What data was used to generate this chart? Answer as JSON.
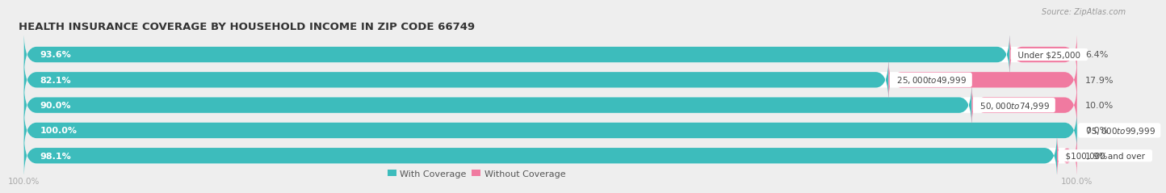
{
  "title": "HEALTH INSURANCE COVERAGE BY HOUSEHOLD INCOME IN ZIP CODE 66749",
  "source": "Source: ZipAtlas.com",
  "categories": [
    "Under $25,000",
    "$25,000 to $49,999",
    "$50,000 to $74,999",
    "$75,000 to $99,999",
    "$100,000 and over"
  ],
  "with_coverage": [
    93.6,
    82.1,
    90.0,
    100.0,
    98.1
  ],
  "without_coverage": [
    6.4,
    17.9,
    10.0,
    0.0,
    1.9
  ],
  "color_with": "#3dbcbc",
  "color_without": "#f07aa0",
  "bg_color": "#eeeeee",
  "bar_bg_color": "#ffffff",
  "title_fontsize": 9.5,
  "label_fontsize": 8,
  "cat_fontsize": 7.5,
  "tick_fontsize": 7.5,
  "bar_height": 0.62,
  "bar_gap": 0.38,
  "xlim": [
    0,
    100
  ],
  "legend_labels": [
    "With Coverage",
    "Without Coverage"
  ]
}
